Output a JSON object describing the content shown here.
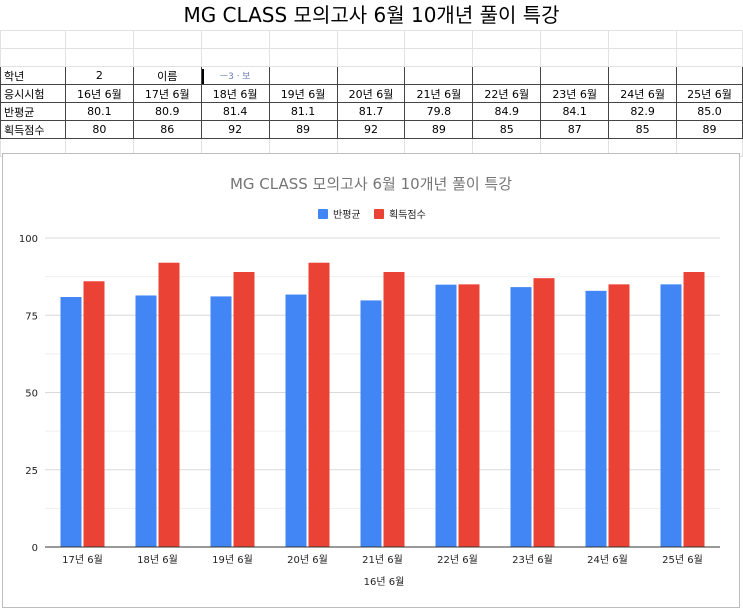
{
  "sheet": {
    "title": "MG CLASS 모의고사 6월 10개년 풀이 특강",
    "grade_label": "학년",
    "grade_value": "2",
    "name_label": "이름",
    "name_value": "ㅡ3ㆍ보",
    "rows": [
      {
        "label": "응시시험",
        "cells": [
          "16년 6월",
          "17년 6월",
          "18년 6월",
          "19년 6월",
          "20년 6월",
          "21년 6월",
          "22년 6월",
          "23년 6월",
          "24년 6월",
          "25년 6월"
        ]
      },
      {
        "label": "반평균",
        "cells": [
          "80.1",
          "80.9",
          "81.4",
          "81.1",
          "81.7",
          "79.8",
          "84.9",
          "84.1",
          "82.9",
          "85.0"
        ]
      },
      {
        "label": "획득점수",
        "cells": [
          "80",
          "86",
          "92",
          "89",
          "92",
          "89",
          "85",
          "87",
          "85",
          "89"
        ]
      }
    ]
  },
  "chart_data": {
    "type": "bar",
    "title": "MG CLASS 모의고사 6월 10개년 풀이 특강",
    "xlabel": "16년 6월",
    "ylabel": "",
    "categories": [
      "17년 6월",
      "18년 6월",
      "19년 6월",
      "20년 6월",
      "21년 6월",
      "22년 6월",
      "23년 6월",
      "24년 6월",
      "25년 6월"
    ],
    "series": [
      {
        "name": "반평균",
        "color": "#4285f4",
        "values": [
          80.9,
          81.4,
          81.1,
          81.7,
          79.8,
          84.9,
          84.1,
          82.9,
          85.0
        ]
      },
      {
        "name": "획득점수",
        "color": "#ea4335",
        "values": [
          86,
          92,
          89,
          92,
          89,
          85,
          87,
          85,
          89
        ]
      }
    ],
    "ylim": [
      0,
      100
    ],
    "yticks": [
      0,
      25,
      50,
      75,
      100
    ],
    "grid": true,
    "legend": "top-center"
  }
}
